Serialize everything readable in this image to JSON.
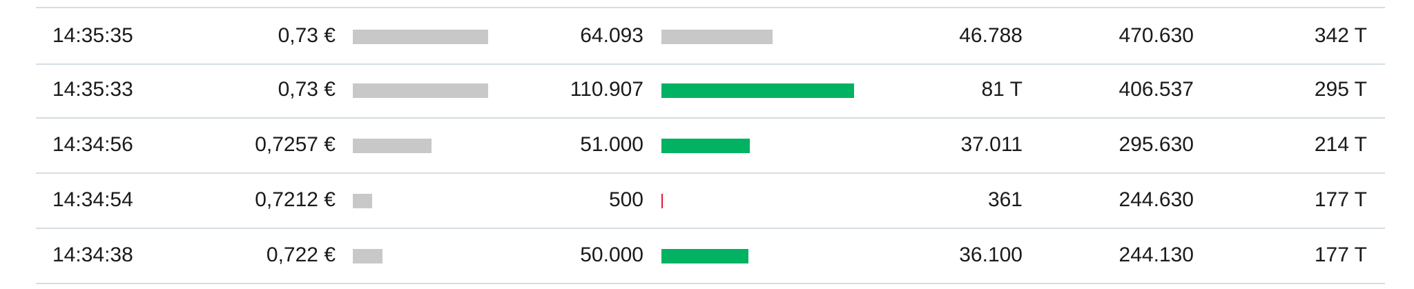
{
  "rows": [
    {
      "time": "14:35:35",
      "price": 0.73,
      "price_label": "0,73 €",
      "volume": 64093,
      "volume_label": "64.093",
      "volume_color": "#c8c8c8",
      "col4": "46.788",
      "col5": "470.630",
      "col6": "342 T"
    },
    {
      "time": "14:35:33",
      "price": 0.73,
      "price_label": "0,73 €",
      "volume": 110907,
      "volume_label": "110.907",
      "volume_color": "#00b262",
      "col4": "81 T",
      "col5": "406.537",
      "col6": "295 T"
    },
    {
      "time": "14:34:56",
      "price": 0.7257,
      "price_label": "0,7257 €",
      "volume": 51000,
      "volume_label": "51.000",
      "volume_color": "#00b262",
      "col4": "37.011",
      "col5": "295.630",
      "col6": "214 T"
    },
    {
      "time": "14:34:54",
      "price": 0.7212,
      "price_label": "0,7212 €",
      "volume": 500,
      "volume_label": "500",
      "volume_color": "#e8173a",
      "col4": "361",
      "col5": "244.630",
      "col6": "177 T"
    },
    {
      "time": "14:34:38",
      "price": 0.722,
      "price_label": "0,722 €",
      "volume": 50000,
      "volume_label": "50.000",
      "volume_color": "#00b262",
      "col4": "36.100",
      "col5": "244.130",
      "col6": "177 T"
    }
  ],
  "price_bar_color": "#c8c8c8"
}
